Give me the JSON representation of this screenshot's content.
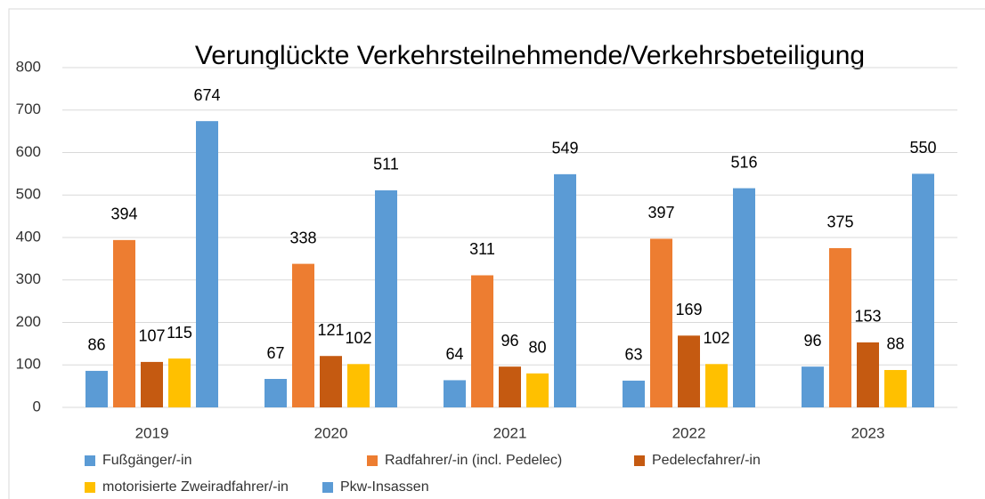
{
  "chart_data": {
    "type": "bar",
    "title": "Verunglückte Verkehrsteilnehmende/Verkehrsbeteiligung",
    "categories": [
      "2019",
      "2020",
      "2021",
      "2022",
      "2023"
    ],
    "series": [
      {
        "name": "Fußgänger/-in",
        "color": "#5b9bd5",
        "values": [
          86,
          67,
          64,
          63,
          96
        ]
      },
      {
        "name": "Radfahrer/-in (incl. Pedelec)",
        "color": "#ed7d31",
        "values": [
          394,
          338,
          311,
          397,
          375
        ]
      },
      {
        "name": "Pedelecfahrer/-in",
        "color": "#c55a11",
        "values": [
          107,
          121,
          96,
          169,
          153
        ]
      },
      {
        "name": "motorisierte Zweiradfahrer/-in",
        "color": "#ffc000",
        "values": [
          115,
          102,
          80,
          102,
          88
        ]
      },
      {
        "name": "Pkw-Insassen",
        "color": "#5b9bd5",
        "values": [
          674,
          511,
          549,
          516,
          550
        ]
      }
    ],
    "ylim": [
      0,
      800
    ],
    "yticks": [
      0,
      100,
      200,
      300,
      400,
      500,
      600,
      700,
      800
    ],
    "grid": true
  }
}
